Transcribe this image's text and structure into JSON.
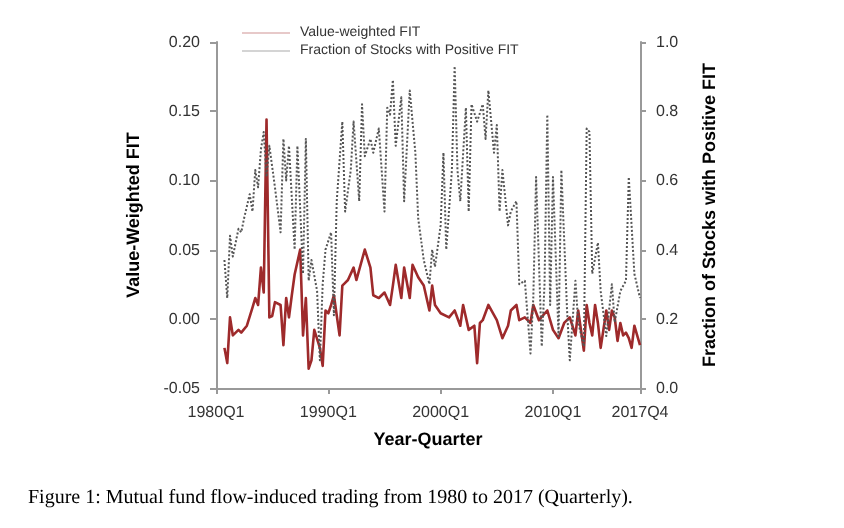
{
  "chart_data": {
    "type": "line",
    "xlabel": "Year-Quarter",
    "ylabel": "Value-Weighted FIT",
    "y2label": "Fraction of Stocks with Positive FIT",
    "annotations": [
      "Figure 1: Mutual fund flow-induced trading from 1980 to 2017 (Quarterly)."
    ],
    "legend": "top left",
    "grid": false,
    "marker": "none",
    "xlim": [
      "1980-01",
      "2017-10"
    ],
    "xticks": [
      {
        "value": "1980-01",
        "label": "1980Q1"
      },
      {
        "value": "1990-01",
        "label": "1990Q1"
      },
      {
        "value": "2000-01",
        "label": "2000Q1"
      },
      {
        "value": "2010-01",
        "label": "2010Q1"
      },
      {
        "value": "2017-10",
        "label": "2017Q4"
      }
    ],
    "ylim": [
      -0.05,
      0.2
    ],
    "yticks": [
      {
        "value": -0.05,
        "label": "-0.05"
      },
      {
        "value": 0,
        "label": "0.00"
      },
      {
        "value": 0.05,
        "label": "0.05"
      },
      {
        "value": 0.1,
        "label": "0.10"
      },
      {
        "value": 0.15,
        "label": "0.15"
      },
      {
        "value": 0.2,
        "label": "0.20"
      }
    ],
    "y2lim": [
      0,
      1
    ],
    "y2ticks": [
      {
        "value": 0,
        "label": "0.0"
      },
      {
        "value": 0.2,
        "label": "0.2"
      },
      {
        "value": 0.4,
        "label": "0.4"
      },
      {
        "value": 0.6,
        "label": "0.6"
      },
      {
        "value": 0.8,
        "label": "0.8"
      },
      {
        "value": 1,
        "label": "1.0"
      }
    ],
    "series": [
      {
        "name": "Value-weighted FIT",
        "color": "#9e2a2b",
        "line_style": "solid",
        "x": [
          "1980-10",
          "1981-01",
          "1981-04",
          "1981-07",
          "1982-01",
          "1982-04",
          "1982-10",
          "1983-04",
          "1983-07",
          "1983-10",
          "1984-01",
          "1984-04",
          "1984-07",
          "1984-10",
          "1985-01",
          "1985-04",
          "1985-10",
          "1986-01",
          "1986-04",
          "1986-07",
          "1986-10",
          "1987-01",
          "1987-07",
          "1987-10",
          "1988-01",
          "1988-04",
          "1988-07",
          "1988-10",
          "1989-04",
          "1989-07",
          "1989-10",
          "1990-01",
          "1990-04",
          "1990-07",
          "1991-01",
          "1991-04",
          "1991-07",
          "1991-10",
          "1992-04",
          "1992-07",
          "1993-04",
          "1993-10",
          "1994-01",
          "1994-07",
          "1995-01",
          "1995-07",
          "1995-10",
          "1996-01",
          "1996-07",
          "1996-10",
          "1997-04",
          "1997-07",
          "1998-01",
          "1998-07",
          "1999-01",
          "1999-04",
          "1999-07",
          "2000-01",
          "2000-10",
          "2001-04",
          "2001-10",
          "2002-01",
          "2002-07",
          "2003-01",
          "2003-04",
          "2003-07",
          "2003-10",
          "2004-04",
          "2005-01",
          "2005-07",
          "2006-01",
          "2006-04",
          "2006-10",
          "2007-01",
          "2007-07",
          "2008-01",
          "2008-04",
          "2008-10",
          "2009-07",
          "2010-01",
          "2010-07",
          "2011-01",
          "2011-07",
          "2012-01",
          "2012-04",
          "2012-10",
          "2013-01",
          "2013-04",
          "2013-07",
          "2013-10",
          "2014-01",
          "2014-04",
          "2014-10",
          "2015-01",
          "2015-04",
          "2015-07",
          "2015-10",
          "2016-01",
          "2016-04",
          "2016-07",
          "2016-10",
          "2017-01",
          "2017-04",
          "2017-07",
          "2017-10"
        ],
        "values": [
          -0.021,
          -0.032,
          0.001,
          -0.012,
          -0.008,
          -0.01,
          -0.005,
          0.008,
          0.015,
          0.01,
          0.037,
          0.019,
          0.144,
          0.001,
          0.002,
          0.012,
          0.01,
          -0.019,
          0.015,
          0.001,
          0.017,
          0.032,
          0.05,
          -0.012,
          0.015,
          -0.036,
          -0.03,
          -0.008,
          -0.021,
          -0.034,
          0.006,
          0.004,
          0.01,
          0.017,
          -0.012,
          0.024,
          0.026,
          0.028,
          0.037,
          0.028,
          0.05,
          0.037,
          0.017,
          0.015,
          0.019,
          0.01,
          0.024,
          0.039,
          0.015,
          0.037,
          0.015,
          0.039,
          0.03,
          0.024,
          0.006,
          0.024,
          0.01,
          0.004,
          0.001,
          0.006,
          -0.005,
          0.01,
          -0.008,
          -0.005,
          -0.032,
          -0.003,
          -0.001,
          0.01,
          -0.001,
          -0.014,
          -0.005,
          0.006,
          0.01,
          -0.001,
          0.001,
          -0.003,
          0.01,
          -0.001,
          0.006,
          -0.008,
          -0.014,
          -0.003,
          0.001,
          -0.012,
          0.006,
          -0.023,
          0.01,
          -0.003,
          -0.012,
          0.01,
          -0.003,
          -0.021,
          0.006,
          -0.008,
          0.006,
          0.001,
          -0.016,
          -0.003,
          -0.012,
          -0.01,
          -0.014,
          -0.021,
          -0.005,
          -0.012,
          -0.019
        ]
      },
      {
        "name": "Fraction of Stocks with Positive FIT",
        "color": "#555555",
        "line_style": "dotted",
        "axis": "y2",
        "x": [
          "1980-10",
          "1981-01",
          "1981-04",
          "1981-07",
          "1982-01",
          "1982-04",
          "1982-07",
          "1983-01",
          "1983-04",
          "1983-07",
          "1983-10",
          "1984-01",
          "1984-04",
          "1984-07",
          "1984-10",
          "1985-04",
          "1985-10",
          "1986-01",
          "1986-04",
          "1986-07",
          "1987-01",
          "1987-04",
          "1987-10",
          "1988-01",
          "1988-04",
          "1988-07",
          "1989-01",
          "1989-04",
          "1989-07",
          "1989-10",
          "1990-04",
          "1990-07",
          "1990-10",
          "1991-04",
          "1991-07",
          "1992-01",
          "1992-04",
          "1992-10",
          "1993-01",
          "1993-04",
          "1993-10",
          "1994-01",
          "1994-07",
          "1995-01",
          "1995-04",
          "1995-07",
          "1995-10",
          "1996-01",
          "1996-07",
          "1996-10",
          "1997-04",
          "1997-10",
          "1998-01",
          "1998-07",
          "1999-01",
          "1999-04",
          "1999-07",
          "2000-01",
          "2000-04",
          "2000-07",
          "2001-01",
          "2001-04",
          "2001-07",
          "2001-10",
          "2002-04",
          "2002-07",
          "2002-10",
          "2003-04",
          "2003-10",
          "2004-01",
          "2004-04",
          "2004-10",
          "2005-01",
          "2005-04",
          "2005-07",
          "2006-01",
          "2006-04",
          "2006-10",
          "2007-01",
          "2007-07",
          "2008-01",
          "2008-04",
          "2008-07",
          "2009-01",
          "2009-04",
          "2009-07",
          "2009-10",
          "2010-01",
          "2010-07",
          "2010-10",
          "2011-04",
          "2011-07",
          "2012-01",
          "2012-04",
          "2012-10",
          "2013-01",
          "2013-04",
          "2013-07",
          "2014-01",
          "2014-04",
          "2014-10",
          "2015-04",
          "2015-07",
          "2016-01",
          "2016-07",
          "2016-10",
          "2017-04",
          "2017-10"
        ],
        "values": [
          0.37,
          0.26,
          0.44,
          0.38,
          0.46,
          0.45,
          0.49,
          0.56,
          0.51,
          0.63,
          0.58,
          0.69,
          0.74,
          0.61,
          0.7,
          0.58,
          0.45,
          0.72,
          0.6,
          0.7,
          0.4,
          0.7,
          0.33,
          0.72,
          0.31,
          0.37,
          0.28,
          0.08,
          0.3,
          0.4,
          0.45,
          0.21,
          0.54,
          0.77,
          0.51,
          0.63,
          0.77,
          0.54,
          0.82,
          0.67,
          0.72,
          0.68,
          0.75,
          0.51,
          0.81,
          0.79,
          0.89,
          0.7,
          0.84,
          0.54,
          0.86,
          0.68,
          0.49,
          0.37,
          0.3,
          0.4,
          0.35,
          0.47,
          0.68,
          0.4,
          0.63,
          0.93,
          0.63,
          0.54,
          0.81,
          0.51,
          0.82,
          0.77,
          0.82,
          0.72,
          0.86,
          0.68,
          0.76,
          0.51,
          0.63,
          0.47,
          0.51,
          0.54,
          0.3,
          0.31,
          0.1,
          0.26,
          0.61,
          0.12,
          0.3,
          0.79,
          0.24,
          0.61,
          0.15,
          0.63,
          0.23,
          0.08,
          0.31,
          0.19,
          0.12,
          0.75,
          0.74,
          0.33,
          0.42,
          0.28,
          0.15,
          0.3,
          0.19,
          0.28,
          0.31,
          0.61,
          0.33,
          0.26
        ]
      }
    ]
  }
}
